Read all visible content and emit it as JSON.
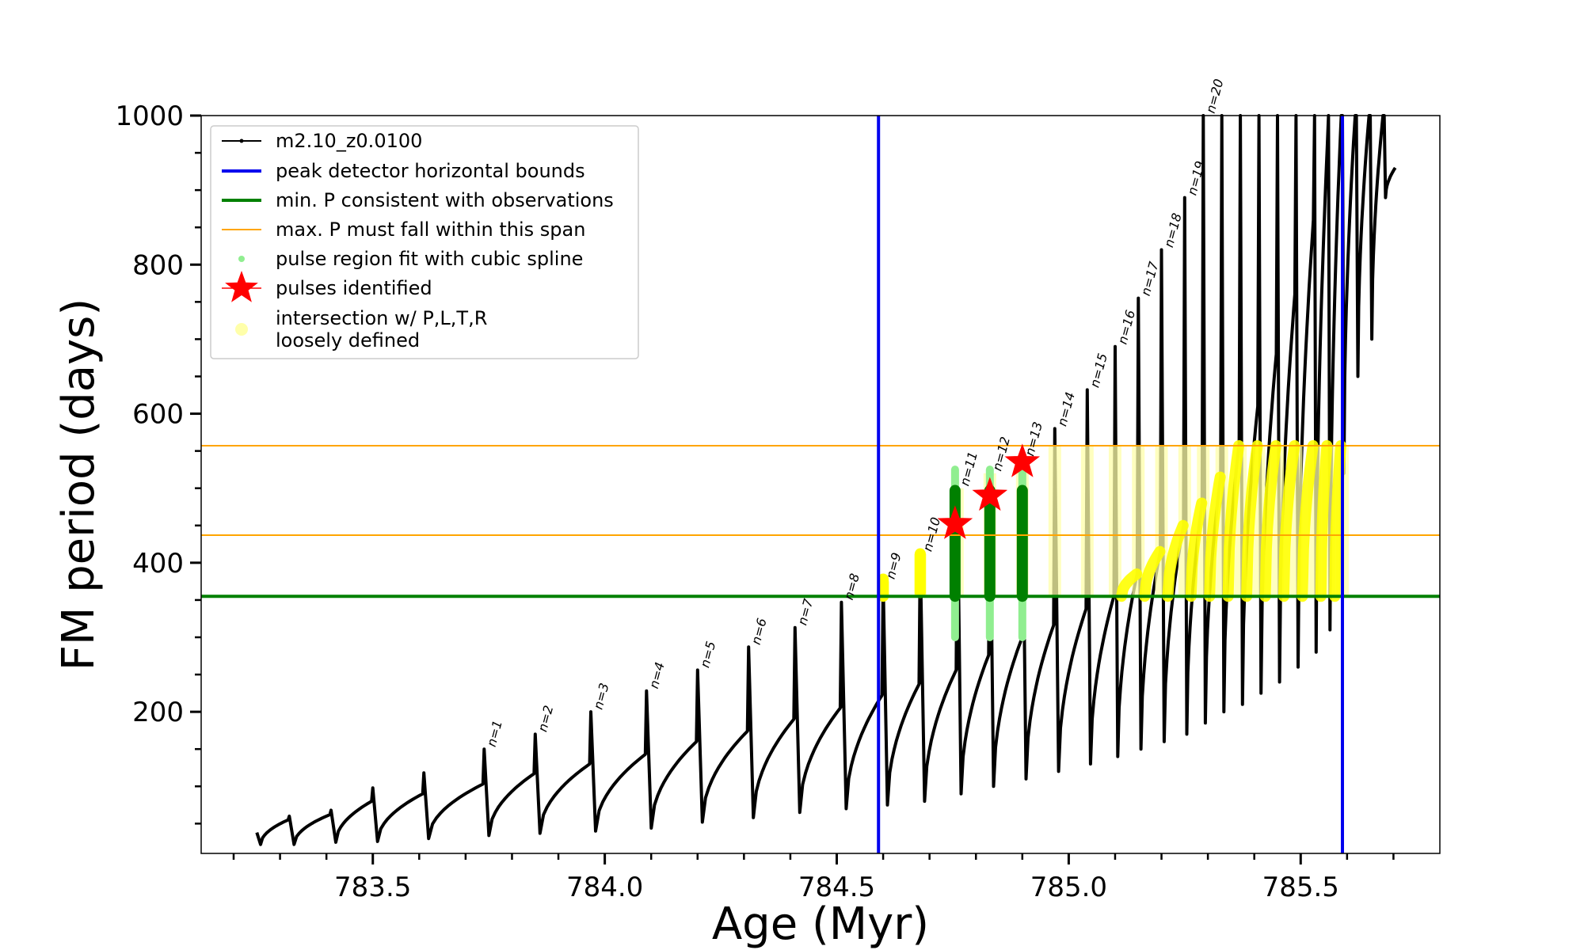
{
  "chart_data": {
    "type": "line",
    "xlabel": "Age (Myr)",
    "ylabel": "FM period (days)",
    "xlim": [
      783.13,
      785.8
    ],
    "ylim": [
      10,
      1000
    ],
    "xticks": [
      783.5,
      784.0,
      784.5,
      785.0,
      785.5
    ],
    "xtick_labels": [
      "783.5",
      "784.0",
      "784.5",
      "785.0",
      "785.5"
    ],
    "yticks": [
      200,
      400,
      600,
      800,
      1000
    ],
    "ytick_labels": [
      "200",
      "400",
      "600",
      "800",
      "1000"
    ],
    "grid": false,
    "legend_position": "upper left",
    "legend": [
      {
        "key": "track",
        "label": "m2.10_z0.0100"
      },
      {
        "key": "blue",
        "label": "peak detector horizontal bounds"
      },
      {
        "key": "green",
        "label": "min. P consistent with observations"
      },
      {
        "key": "orange",
        "label": "max. P must fall within this span"
      },
      {
        "key": "lightgreen",
        "label": "pulse region fit with cubic spline"
      },
      {
        "key": "star",
        "label": "pulses identified"
      },
      {
        "key": "yellow",
        "label": "intersection w/ P,L,T,R\nloosely defined"
      }
    ],
    "peak_detector_bounds_x": [
      784.59,
      785.59
    ],
    "min_period": 355,
    "max_period_span": [
      437,
      557
    ],
    "pulses": [
      {
        "x": 783.25,
        "peak": 38,
        "trough": 22,
        "pre": 38
      },
      {
        "x": 783.32,
        "peak": 60,
        "trough": 22,
        "pre": 55
      },
      {
        "x": 783.41,
        "peak": 68,
        "trough": 25,
        "pre": 62
      },
      {
        "x": 783.5,
        "peak": 98,
        "trough": 26,
        "pre": 80
      },
      {
        "x": 783.61,
        "peak": 118,
        "trough": 30,
        "pre": 90
      },
      {
        "x": 783.74,
        "peak": 150,
        "trough": 34,
        "pre": 103,
        "label": "n=1"
      },
      {
        "x": 783.85,
        "peak": 170,
        "trough": 37,
        "pre": 117,
        "label": "n=2"
      },
      {
        "x": 783.97,
        "peak": 200,
        "trough": 40,
        "pre": 130,
        "label": "n=3"
      },
      {
        "x": 784.09,
        "peak": 228,
        "trough": 44,
        "pre": 143,
        "label": "n=4"
      },
      {
        "x": 784.2,
        "peak": 256,
        "trough": 52,
        "pre": 160,
        "label": "n=5"
      },
      {
        "x": 784.31,
        "peak": 287,
        "trough": 58,
        "pre": 174,
        "label": "n=6"
      },
      {
        "x": 784.41,
        "peak": 313,
        "trough": 65,
        "pre": 190,
        "label": "n=7"
      },
      {
        "x": 784.51,
        "peak": 347,
        "trough": 70,
        "pre": 205,
        "label": "n=8"
      },
      {
        "x": 784.6,
        "peak": 375,
        "trough": 75,
        "pre": 222,
        "label": "n=9"
      },
      {
        "x": 784.68,
        "peak": 412,
        "trough": 80,
        "pre": 237,
        "label": "n=10"
      },
      {
        "x": 784.76,
        "peak": 500,
        "trough": 90,
        "pre": 256,
        "label": "n=11"
      },
      {
        "x": 784.83,
        "peak": 520,
        "trough": 100,
        "pre": 276,
        "label": "n=12"
      },
      {
        "x": 784.9,
        "peak": 540,
        "trough": 110,
        "pre": 296,
        "label": "n=13"
      },
      {
        "x": 784.97,
        "peak": 580,
        "trough": 120,
        "pre": 316,
        "label": "n=14"
      },
      {
        "x": 785.04,
        "peak": 632,
        "trough": 130,
        "pre": 338,
        "label": "n=15"
      },
      {
        "x": 785.1,
        "peak": 690,
        "trough": 140,
        "pre": 355,
        "label": "n=16"
      },
      {
        "x": 785.15,
        "peak": 755,
        "trough": 150,
        "pre": 385,
        "label": "n=17"
      },
      {
        "x": 785.2,
        "peak": 820,
        "trough": 160,
        "pre": 415,
        "label": "n=18"
      },
      {
        "x": 785.25,
        "peak": 890,
        "trough": 170,
        "pre": 450,
        "label": "n=19"
      },
      {
        "x": 785.29,
        "peak": 1000,
        "trough": 185,
        "pre": 480,
        "label": "n=20"
      },
      {
        "x": 785.33,
        "peak": 1000,
        "trough": 200,
        "pre": 515
      },
      {
        "x": 785.37,
        "peak": 1000,
        "trough": 210,
        "pre": 560
      },
      {
        "x": 785.41,
        "peak": 1000,
        "trough": 225,
        "pre": 610
      },
      {
        "x": 785.45,
        "peak": 1000,
        "trough": 240,
        "pre": 680
      },
      {
        "x": 785.49,
        "peak": 1000,
        "trough": 260,
        "pre": 760
      },
      {
        "x": 785.53,
        "peak": 1000,
        "trough": 280,
        "pre": 860
      },
      {
        "x": 785.56,
        "peak": 1000,
        "trough": 310,
        "pre": 960
      },
      {
        "x": 785.59,
        "peak": 1000,
        "trough": 520,
        "pre": 1000
      },
      {
        "x": 785.62,
        "peak": 1000,
        "trough": 650,
        "pre": 1000
      },
      {
        "x": 785.65,
        "peak": 1000,
        "trough": 700,
        "pre": 1000
      },
      {
        "x": 785.68,
        "peak": 1000,
        "trough": 890,
        "pre": 1000
      }
    ],
    "identified_pulses": [
      {
        "x": 784.755,
        "y": 452
      },
      {
        "x": 784.83,
        "y": 490
      },
      {
        "x": 784.9,
        "y": 535
      }
    ],
    "spline_fit_regions": [
      {
        "x": 784.755,
        "y_range": [
          300,
          525
        ]
      },
      {
        "x": 784.83,
        "y_range": [
          300,
          525
        ]
      },
      {
        "x": 784.9,
        "y_range": [
          300,
          525
        ]
      }
    ]
  },
  "colors": {
    "track": "#000000",
    "blue": "#0000ee",
    "green": "#008000",
    "orange": "#ffa500",
    "lightgreen": "#90ee90",
    "star": "#ff0000",
    "yellow": "#ffff00",
    "yellow_light": "#ffffaa"
  }
}
